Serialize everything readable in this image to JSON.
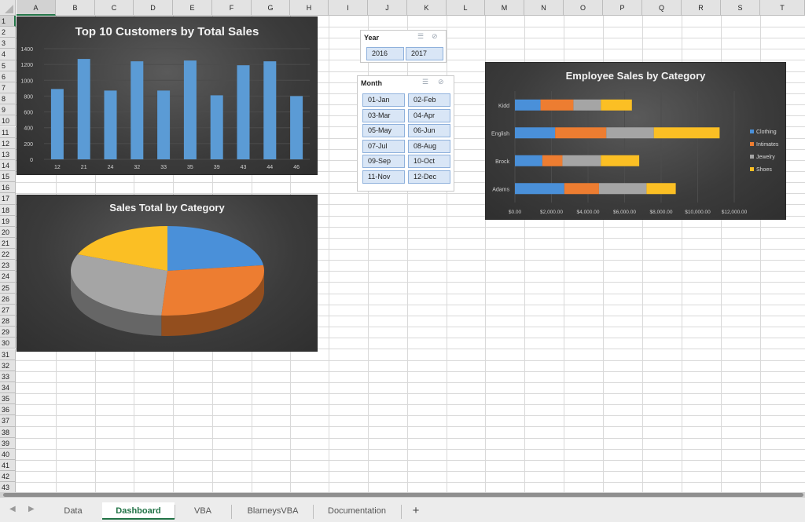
{
  "sheet": {
    "columns": [
      "A",
      "B",
      "C",
      "D",
      "E",
      "F",
      "G",
      "H",
      "I",
      "J",
      "K",
      "L",
      "M",
      "N",
      "O",
      "P",
      "Q",
      "R",
      "S",
      "T"
    ],
    "rows": [
      "1",
      "2",
      "3",
      "4",
      "5",
      "6",
      "7",
      "8",
      "9",
      "10",
      "11",
      "12",
      "13",
      "14",
      "15",
      "16",
      "17",
      "18",
      "19",
      "20",
      "21",
      "22",
      "23",
      "24",
      "25",
      "26",
      "27",
      "28",
      "29",
      "30",
      "31",
      "32",
      "33",
      "34",
      "35",
      "36",
      "37",
      "38",
      "39",
      "40",
      "41",
      "42",
      "43"
    ],
    "selected_column": "A",
    "selected_row": "1"
  },
  "chart_data": [
    {
      "type": "bar",
      "title": "Top 10 Customers by Total Sales",
      "categories": [
        "12",
        "21",
        "24",
        "32",
        "33",
        "35",
        "39",
        "43",
        "44",
        "46"
      ],
      "values": [
        890,
        1270,
        870,
        1240,
        870,
        1250,
        810,
        1190,
        1240,
        800
      ],
      "ylim": [
        0,
        1400
      ],
      "yticks": [
        "0",
        "200",
        "400",
        "600",
        "800",
        "1000",
        "1200",
        "1400"
      ],
      "color": "#5b9bd5"
    },
    {
      "type": "pie",
      "title": "Sales Total by Category",
      "slices": [
        {
          "name": "Clothing",
          "value": 23,
          "color": "#4a90d9"
        },
        {
          "name": "Intimates",
          "value": 28,
          "color": "#ed7d31"
        },
        {
          "name": "Jewelry",
          "value": 30,
          "color": "#a5a5a5"
        },
        {
          "name": "Shoes",
          "value": 19,
          "color": "#fbbf24"
        }
      ]
    },
    {
      "type": "bar",
      "orientation": "horizontal",
      "stacked": true,
      "title": "Employee Sales by Category",
      "categories": [
        "Kidd",
        "English",
        "Brock",
        "Adams"
      ],
      "series": [
        {
          "name": "Clothing",
          "color": "#4a90d9",
          "values": [
            1400,
            2200,
            1500,
            2700
          ]
        },
        {
          "name": "Intimates",
          "color": "#ed7d31",
          "values": [
            1800,
            2800,
            1100,
            1900
          ]
        },
        {
          "name": "Jewelry",
          "color": "#a5a5a5",
          "values": [
            1500,
            2600,
            2100,
            2600
          ]
        },
        {
          "name": "Shoes",
          "color": "#fbbf24",
          "values": [
            1700,
            3600,
            2100,
            1600
          ]
        }
      ],
      "xlim": [
        0,
        12000
      ],
      "xticks": [
        "$0.00",
        "$2,000.00",
        "$4,000.00",
        "$6,000.00",
        "$8,000.00",
        "$10,000.00",
        "$12,000.00"
      ],
      "legend": "right"
    }
  ],
  "slicers": {
    "year": {
      "title": "Year",
      "items": [
        "2016",
        "2017"
      ]
    },
    "month": {
      "title": "Month",
      "items": [
        "01-Jan",
        "02-Feb",
        "03-Mar",
        "04-Apr",
        "05-May",
        "06-Jun",
        "07-Jul",
        "08-Aug",
        "09-Sep",
        "10-Oct",
        "11-Nov",
        "12-Dec"
      ]
    }
  },
  "tabs": [
    {
      "label": "Data",
      "active": false
    },
    {
      "label": "Dashboard",
      "active": true
    },
    {
      "label": "VBA",
      "active": false
    },
    {
      "label": "BlarneysVBA",
      "active": false
    },
    {
      "label": "Documentation",
      "active": false
    }
  ],
  "add_sheet_label": "+"
}
